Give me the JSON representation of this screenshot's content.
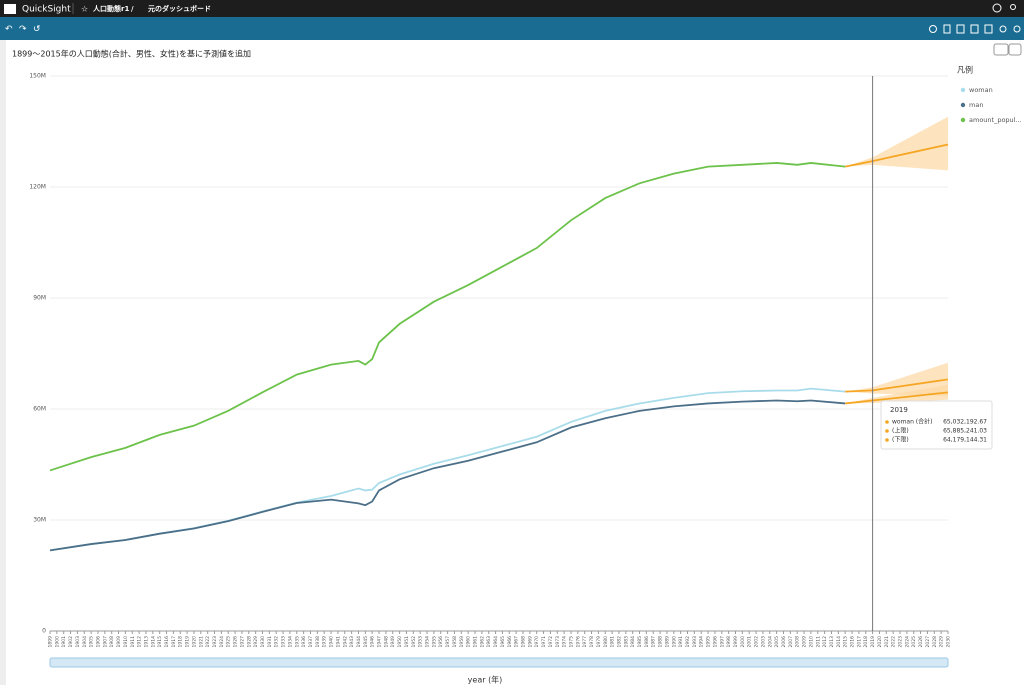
{
  "header": {
    "app": "QuickSight",
    "analysis": "人口動態r1",
    "separator": "/",
    "dashboard": "元のダッシュボード"
  },
  "chart_data": {
    "type": "line",
    "title": "1899〜2015年の人口動態(合計、男性、女性)を基に予測値を追加",
    "x_label": "year (年)",
    "legend_title": "凡例",
    "grid": true,
    "x": [
      1899,
      1905,
      1910,
      1915,
      1920,
      1925,
      1930,
      1935,
      1940,
      1944,
      1945,
      1946,
      1947,
      1950,
      1955,
      1960,
      1965,
      1970,
      1975,
      1980,
      1985,
      1990,
      1995,
      2000,
      2005,
      2008,
      2010,
      2015
    ],
    "series": [
      {
        "name": "woman",
        "color": "#a9dcea",
        "values": [
          21800000,
          23500000,
          24600000,
          26300000,
          27800000,
          29800000,
          32300000,
          34700000,
          36500000,
          38500000,
          38000000,
          38200000,
          40000000,
          42300000,
          45200000,
          47500000,
          50000000,
          52500000,
          56500000,
          59500000,
          61500000,
          63000000,
          64300000,
          64800000,
          65000000,
          65000000,
          65500000,
          64700000
        ],
        "forecast": {
          "x": [
            2015,
            2019,
            2030
          ],
          "values": [
            64700000,
            65032192.67,
            68000000
          ],
          "upper": [
            64700000,
            65885241.03,
            72500000
          ],
          "lower": [
            64700000,
            64179144.31,
            63500000
          ]
        }
      },
      {
        "name": "man",
        "color": "#4b6f88",
        "values": [
          21800000,
          23500000,
          24600000,
          26300000,
          27700000,
          29700000,
          32200000,
          34600000,
          35500000,
          34500000,
          34000000,
          35000000,
          38000000,
          41000000,
          44000000,
          46000000,
          48500000,
          51000000,
          55000000,
          57500000,
          59500000,
          60700000,
          61500000,
          62000000,
          62300000,
          62100000,
          62300000,
          61500000
        ],
        "forecast": {
          "x": [
            2015,
            2019,
            2030
          ],
          "values": [
            61500000,
            62300000,
            64500000
          ],
          "upper": [
            61500000,
            63000000,
            66500000
          ],
          "lower": [
            61500000,
            61600000,
            62500000
          ]
        }
      },
      {
        "name": "amount_popul...",
        "color": "#6cc24a",
        "values": [
          43400000,
          47000000,
          49500000,
          53000000,
          55500000,
          59500000,
          64500000,
          69300000,
          72000000,
          73000000,
          72000000,
          73500000,
          78000000,
          83000000,
          89000000,
          93500000,
          98500000,
          103500000,
          111000000,
          117000000,
          121000000,
          123600000,
          125500000,
          126000000,
          126500000,
          126000000,
          126500000,
          125500000
        ],
        "forecast": {
          "x": [
            2015,
            2019,
            2030
          ],
          "values": [
            125500000,
            127000000,
            131500000
          ],
          "upper": [
            125500000,
            128000000,
            139000000
          ],
          "lower": [
            125500000,
            126000000,
            124500000
          ]
        }
      }
    ],
    "forecast_color": "#f5a623",
    "band_color": "#fcd7a3",
    "xlim": [
      1899,
      2030
    ],
    "xticks": [
      1899,
      1900,
      1901,
      1902,
      1903,
      1904,
      1905,
      1906,
      1907,
      1908,
      1909,
      1910,
      1911,
      1912,
      1913,
      1914,
      1915,
      1916,
      1917,
      1918,
      1919,
      1920,
      1921,
      1922,
      1923,
      1924,
      1925,
      1926,
      1927,
      1928,
      1929,
      1930,
      1931,
      1932,
      1933,
      1934,
      1935,
      1936,
      1937,
      1938,
      1939,
      1940,
      1941,
      1942,
      1943,
      1944,
      1945,
      1946,
      1947,
      1948,
      1949,
      1950,
      1951,
      1952,
      1953,
      1954,
      1955,
      1956,
      1957,
      1958,
      1959,
      1960,
      1961,
      1962,
      1963,
      1964,
      1965,
      1966,
      1967,
      1968,
      1969,
      1970,
      1971,
      1972,
      1973,
      1974,
      1975,
      1976,
      1977,
      1978,
      1979,
      1980,
      1981,
      1982,
      1983,
      1984,
      1985,
      1986,
      1987,
      1988,
      1989,
      1990,
      1991,
      1992,
      1993,
      1994,
      1995,
      1996,
      1997,
      1998,
      1999,
      2000,
      2001,
      2002,
      2003,
      2004,
      2005,
      2006,
      2007,
      2008,
      2009,
      2010,
      2011,
      2012,
      2013,
      2014,
      2015,
      2016,
      2017,
      2018,
      2019,
      2020,
      2021,
      2022,
      2023,
      2024,
      2025,
      2026,
      2027,
      2028,
      2029,
      2030
    ],
    "ylim": [
      0,
      150000000
    ],
    "yticks": [
      0,
      {
        "value": 30000000,
        "label": "30M"
      },
      {
        "value": 60000000,
        "label": "60M"
      },
      {
        "value": 90000000,
        "label": "90M"
      },
      {
        "value": 120000000,
        "label": "120M"
      },
      {
        "value": 150000000,
        "label": "150M"
      }
    ],
    "cursor_x": 2019,
    "tooltip": {
      "title": "2019",
      "rows": [
        {
          "label": "woman (合計)",
          "value": "65,032,192.67"
        },
        {
          "label": "(上限)",
          "value": "65,885,241.03"
        },
        {
          "label": "(下限)",
          "value": "64,179,144.31"
        }
      ]
    }
  }
}
